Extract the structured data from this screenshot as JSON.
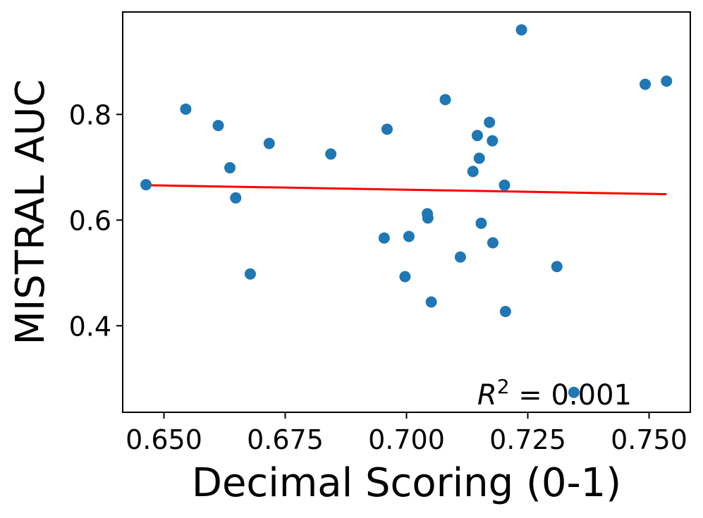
{
  "chart_data": {
    "type": "scatter",
    "title": "",
    "xlabel": "Decimal Scoring (0-1)",
    "ylabel": "MISTRAL AUC",
    "xlim": [
      0.6415,
      0.7585
    ],
    "ylim": [
      0.2363,
      0.9938
    ],
    "x_ticks": [
      0.65,
      0.675,
      0.7,
      0.725,
      0.75
    ],
    "x_tick_labels": [
      "0.650",
      "0.675",
      "0.700",
      "0.725",
      "0.750"
    ],
    "y_ticks": [
      0.4,
      0.6,
      0.8
    ],
    "y_tick_labels": [
      "0.4",
      "0.6",
      "0.8"
    ],
    "grid": false,
    "marker_color": "#1f77b4",
    "series": [
      {
        "points": [
          {
            "x": 0.6463,
            "y": 0.667
          },
          {
            "x": 0.6545,
            "y": 0.81
          },
          {
            "x": 0.6612,
            "y": 0.779
          },
          {
            "x": 0.6636,
            "y": 0.699
          },
          {
            "x": 0.6648,
            "y": 0.642
          },
          {
            "x": 0.6678,
            "y": 0.498
          },
          {
            "x": 0.6717,
            "y": 0.745
          },
          {
            "x": 0.6844,
            "y": 0.725
          },
          {
            "x": 0.6954,
            "y": 0.566
          },
          {
            "x": 0.696,
            "y": 0.772
          },
          {
            "x": 0.6997,
            "y": 0.493
          },
          {
            "x": 0.7005,
            "y": 0.569
          },
          {
            "x": 0.7043,
            "y": 0.612
          },
          {
            "x": 0.7044,
            "y": 0.604
          },
          {
            "x": 0.7051,
            "y": 0.445
          },
          {
            "x": 0.708,
            "y": 0.828
          },
          {
            "x": 0.7111,
            "y": 0.53
          },
          {
            "x": 0.7137,
            "y": 0.692
          },
          {
            "x": 0.7146,
            "y": 0.76
          },
          {
            "x": 0.715,
            "y": 0.717
          },
          {
            "x": 0.7154,
            "y": 0.594
          },
          {
            "x": 0.7171,
            "y": 0.785
          },
          {
            "x": 0.7177,
            "y": 0.75
          },
          {
            "x": 0.7178,
            "y": 0.557
          },
          {
            "x": 0.7202,
            "y": 0.666
          },
          {
            "x": 0.7204,
            "y": 0.427
          },
          {
            "x": 0.7237,
            "y": 0.96
          },
          {
            "x": 0.731,
            "y": 0.512
          },
          {
            "x": 0.7345,
            "y": 0.274
          },
          {
            "x": 0.7492,
            "y": 0.857
          },
          {
            "x": 0.7536,
            "y": 0.863
          }
        ]
      }
    ],
    "fit_line": {
      "color": "#ff0000",
      "x": [
        0.6463,
        0.7536
      ],
      "y": [
        0.666,
        0.649
      ]
    },
    "annotation": {
      "prefix": "R",
      "superscript": "2",
      "text": " = 0.001"
    }
  }
}
